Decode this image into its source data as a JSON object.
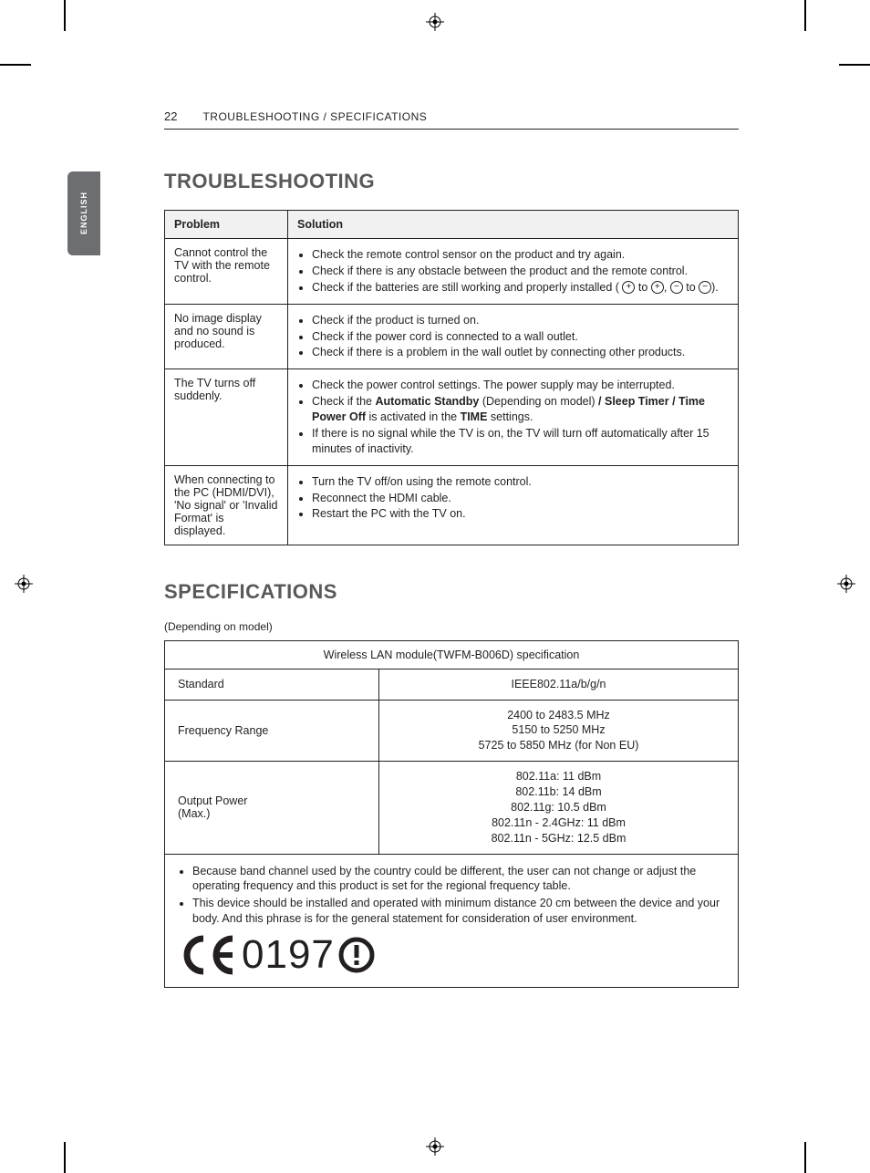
{
  "page_number": "22",
  "running_title": "TROUBLESHOOTING / SPECIFICATIONS",
  "language_tab": "ENGLISH",
  "section_trouble_title": "TROUBLESHOOTING",
  "trouble_table": {
    "headers": {
      "problem": "Problem",
      "solution": "Solution"
    },
    "rows": [
      {
        "problem": "Cannot control the TV with the remote control.",
        "solutions": [
          "Check the remote control sensor on the product and try again.",
          "Check if there is any obstacle between the product and the remote control.",
          "__BATTERY_LINE__"
        ],
        "battery_text": {
          "pre": "Check if the batteries are still working and properly installed ( ",
          "mid1": " to ",
          "mid2": ", ",
          "mid3": " to ",
          "post": ")."
        }
      },
      {
        "problem": "No image display and no sound is produced.",
        "solutions": [
          "Check if the product is turned on.",
          "Check if the power cord is connected to a wall outlet.",
          "Check if there is a problem in the wall outlet by connecting other products."
        ]
      },
      {
        "problem": "The TV turns off suddenly.",
        "solutions": [
          "Check the power control settings. The power supply may be interrupted.",
          "__BOLD_LINE__",
          "If there is no signal while the TV is on, the TV will turn off automatically after 15 minutes of inactivity."
        ],
        "bold_line": {
          "p1": "Check if the ",
          "b1": "Automatic Standby",
          "p2": " (Depending on model) ",
          "b2": "/ Sleep Timer / Time Power Off",
          "p3": " is activated in the ",
          "b3": "TIME",
          "p4": " settings."
        }
      },
      {
        "problem": "When connecting to the PC (HDMI/DVI), 'No signal' or 'Invalid Format' is displayed.",
        "solutions": [
          "Turn the TV off/on using the remote control.",
          "Reconnect the HDMI cable.",
          "Restart the PC with the TV on."
        ]
      }
    ]
  },
  "section_spec_title": "SPECIFICATIONS",
  "spec_subnote": "(Depending on model)",
  "spec_table": {
    "title": "Wireless LAN module(TWFM-B006D) specification",
    "rows": [
      {
        "label": "Standard",
        "value": "IEEE802.11a/b/g/n"
      },
      {
        "label": "Frequency Range",
        "value": "2400 to 2483.5 MHz\n5150 to 5250 MHz\n5725 to 5850 MHz (for Non EU)"
      },
      {
        "label": "Output Power\n(Max.)",
        "value": "802.11a: 11 dBm\n802.11b: 14 dBm\n802.11g: 10.5 dBm\n802.11n - 2.4GHz: 11 dBm\n802.11n - 5GHz: 12.5 dBm"
      }
    ]
  },
  "spec_notes": [
    "Because band channel used by the country could be different, the user can not change or adjust the operating frequency and this product is set for the regional frequency table.",
    "This device should be installed and operated with minimum distance 20 cm between the device and your body. And this phrase is for the general statement for consideration of user environment."
  ],
  "ce_number": "0197",
  "colors": {
    "text": "#231f20",
    "heading": "#58595b",
    "tab_bg": "#6d6e71",
    "th_bg": "#f1f1f2",
    "border": "#231f20"
  }
}
